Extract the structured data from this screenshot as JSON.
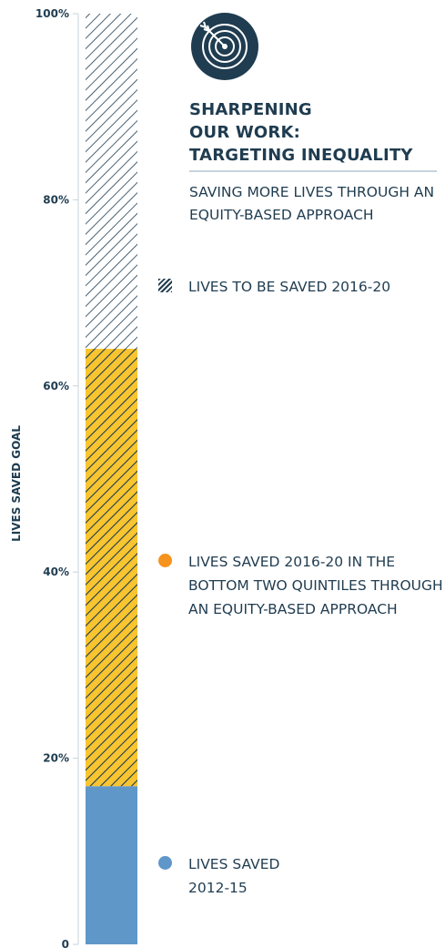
{
  "chart_data": {
    "type": "bar",
    "stacked": true,
    "ylabel": "LIVES SAVED GOAL",
    "ylim": [
      0,
      100
    ],
    "yticks": [
      {
        "value": 0,
        "label": "0"
      },
      {
        "value": 20,
        "label": "20%"
      },
      {
        "value": 40,
        "label": "40%"
      },
      {
        "value": 60,
        "label": "60%"
      },
      {
        "value": 80,
        "label": "80%"
      },
      {
        "value": 100,
        "label": "100%"
      }
    ],
    "series": [
      {
        "name": "LIVES SAVED\n2012-15",
        "value": 17,
        "color": "#5f97c9",
        "pattern": "solid"
      },
      {
        "name": "LIVES SAVED 2016-20 IN THE\nBOTTOM TWO QUINTILES THROUGH\nAN EQUITY-BASED APPROACH",
        "value": 47,
        "color": "#f8c530",
        "pattern": "hatch"
      },
      {
        "name": "LIVES TO BE SAVED 2016-20",
        "value": 36,
        "color": "#ffffff",
        "pattern": "hatch"
      }
    ]
  },
  "header": {
    "title": "SHARPENING\nOUR WORK:\nTARGETING INEQUALITY",
    "subtitle": "SAVING MORE LIVES THROUGH AN\nEQUITY-BASED APPROACH",
    "icon": "target-arrow-icon",
    "icon_color": "#1f3c50"
  },
  "legend": [
    {
      "label": "LIVES TO BE SAVED 2016-20",
      "swatch": "hatch",
      "color": "#1f3c50"
    },
    {
      "label": "LIVES SAVED 2016-20 IN THE\nBOTTOM TWO QUINTILES THROUGH\nAN EQUITY-BASED APPROACH",
      "swatch": "dot",
      "color": "#f6931e"
    },
    {
      "label": "LIVES SAVED\n2012-15",
      "swatch": "dot",
      "color": "#5f97c9"
    }
  ],
  "colors": {
    "ink": "#1f3c50",
    "blue": "#5f97c9",
    "yellow": "#f8c530",
    "orange": "#f6931e"
  }
}
